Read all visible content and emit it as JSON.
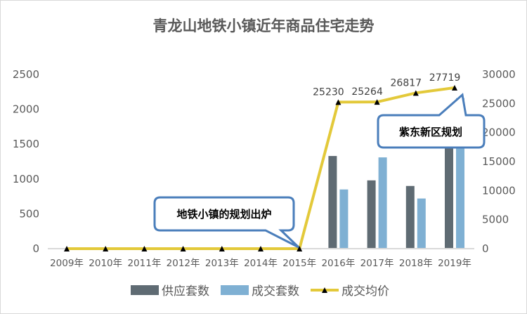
{
  "chart_data": {
    "type": "bar+line",
    "title": "青龙山地铁小镇近年商品住宅走势",
    "categories": [
      "2009年",
      "2010年",
      "2011年",
      "2012年",
      "2013年",
      "2014年",
      "2015年",
      "2016年",
      "2017年",
      "2018年",
      "2019年"
    ],
    "series": [
      {
        "name": "供应套数",
        "type": "bar",
        "axis": "left",
        "color": "#5f6b73",
        "values": [
          0,
          0,
          0,
          0,
          0,
          0,
          0,
          1330,
          980,
          900,
          1750
        ]
      },
      {
        "name": "成交套数",
        "type": "bar",
        "axis": "left",
        "color": "#7fb0d3",
        "values": [
          0,
          0,
          0,
          0,
          0,
          0,
          0,
          850,
          1310,
          720,
          2160
        ]
      },
      {
        "name": "成交均价",
        "type": "line",
        "axis": "right",
        "color": "#e3c93a",
        "marker": "triangle",
        "values": [
          0,
          0,
          0,
          0,
          0,
          0,
          0,
          25230,
          25264,
          26817,
          27719
        ],
        "data_labels": [
          "",
          "",
          "",
          "",
          "",
          "",
          "",
          "25230",
          "25264",
          "26817",
          "27719"
        ]
      }
    ],
    "left_axis": {
      "ylim": [
        0,
        2500
      ],
      "ticks": [
        "0",
        "500",
        "1000",
        "1500",
        "2000",
        "2500"
      ]
    },
    "right_axis": {
      "ylim": [
        0,
        30000
      ],
      "ticks": [
        "0",
        "5000",
        "10000",
        "15000",
        "20000",
        "25000",
        "30000"
      ]
    },
    "grid": false,
    "legend": "bottom",
    "annotations": [
      {
        "text": "地铁小镇的规划出炉",
        "points_to": "2015年"
      },
      {
        "text": "紫东新区规划",
        "points_to": "2019年"
      }
    ]
  }
}
